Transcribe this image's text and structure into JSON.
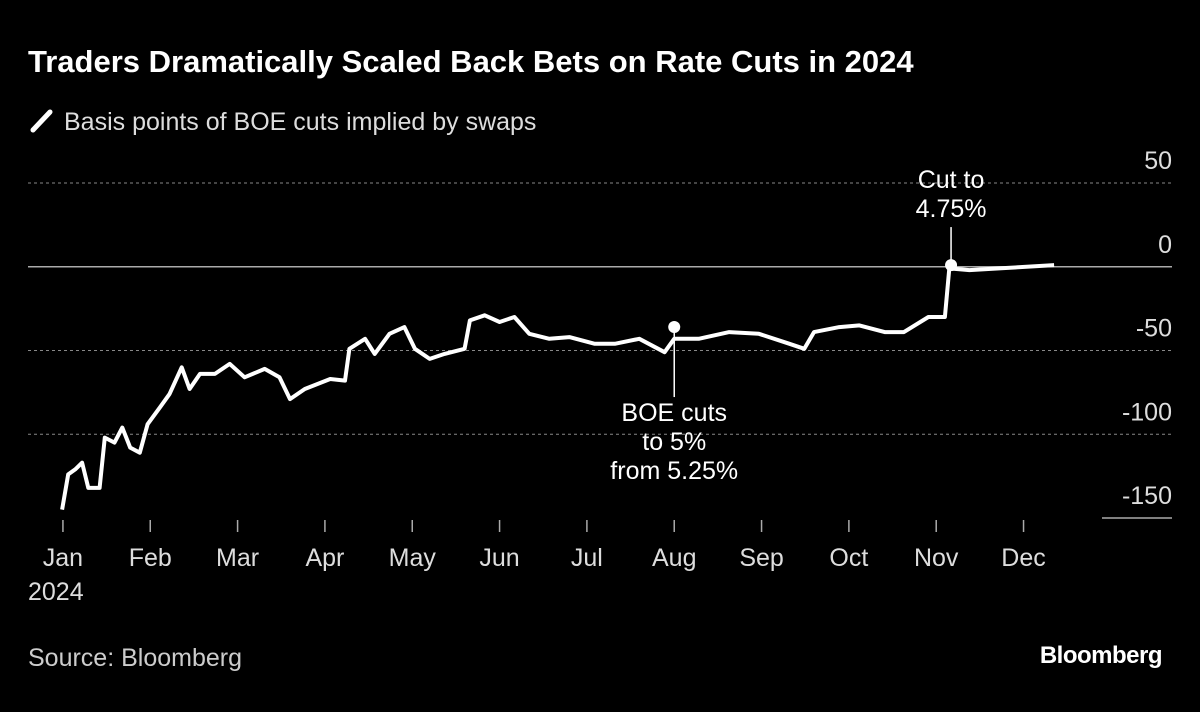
{
  "chart_data": {
    "type": "line",
    "title": "Traders Dramatically Scaled Back Bets on Rate Cuts in 2024",
    "source": "Source: Bloomberg",
    "brand": "Bloomberg",
    "year_label": "2024",
    "series": [
      {
        "name": "Basis points of BOE cuts implied by swaps",
        "color": "#ffffff",
        "x": [
          -0.01,
          0.06,
          0.14,
          0.22,
          0.29,
          0.42,
          0.48,
          0.59,
          0.68,
          0.77,
          0.88,
          0.97,
          1.11,
          1.22,
          1.36,
          1.45,
          1.57,
          1.74,
          1.91,
          2.08,
          2.31,
          2.48,
          2.6,
          2.77,
          3.06,
          3.23,
          3.28,
          3.46,
          3.57,
          3.74,
          3.91,
          4.03,
          4.2,
          4.37,
          4.6,
          4.66,
          4.83,
          5.0,
          5.17,
          5.34,
          5.57,
          5.8,
          6.09,
          6.32,
          6.6,
          6.89,
          7.0,
          7.28,
          7.63,
          7.97,
          8.32,
          8.49,
          8.6,
          8.89,
          9.12,
          9.41,
          9.63,
          9.91,
          10.1,
          10.15,
          10.38,
          10.72,
          11.35
        ],
        "values": [
          -145,
          -124,
          -121,
          -117,
          -132,
          -132,
          -102,
          -105,
          -96,
          -108,
          -111,
          -94,
          -84,
          -76,
          -60,
          -73,
          -64,
          -64,
          -58,
          -66,
          -61,
          -66,
          -79,
          -73,
          -67,
          -68,
          -49,
          -43,
          -52,
          -40,
          -36,
          -49,
          -55,
          -52,
          -49,
          -32,
          -29,
          -33,
          -30,
          -40,
          -43,
          -42,
          -46,
          -46,
          -43,
          -51,
          -43,
          -43,
          -39,
          -40,
          -46,
          -49,
          -39,
          -36,
          -35,
          -39,
          -39,
          -30,
          -30,
          -1,
          -2,
          -1,
          1
        ]
      }
    ],
    "xlim": [
      -0.4,
      12.7
    ],
    "xticks": [
      {
        "value": 0,
        "label": "Jan"
      },
      {
        "value": 1,
        "label": "Feb"
      },
      {
        "value": 2,
        "label": "Mar"
      },
      {
        "value": 3,
        "label": "Apr"
      },
      {
        "value": 4,
        "label": "May"
      },
      {
        "value": 5,
        "label": "Jun"
      },
      {
        "value": 6,
        "label": "Jul"
      },
      {
        "value": 7,
        "label": "Aug"
      },
      {
        "value": 8,
        "label": "Sep"
      },
      {
        "value": 9,
        "label": "Oct"
      },
      {
        "value": 10,
        "label": "Nov"
      },
      {
        "value": 11,
        "label": "Dec"
      }
    ],
    "ylim": [
      -150,
      50
    ],
    "yticks": [
      50,
      0,
      -50,
      -100,
      -150
    ],
    "grid": true,
    "annotations": [
      {
        "lines": [
          "BOE cuts",
          "to 5%",
          "from 5.25%"
        ],
        "x": 7.0,
        "y": -36,
        "position": "below"
      },
      {
        "lines": [
          "Cut to",
          "4.75%"
        ],
        "x": 10.17,
        "y": 1,
        "position": "above"
      }
    ]
  }
}
